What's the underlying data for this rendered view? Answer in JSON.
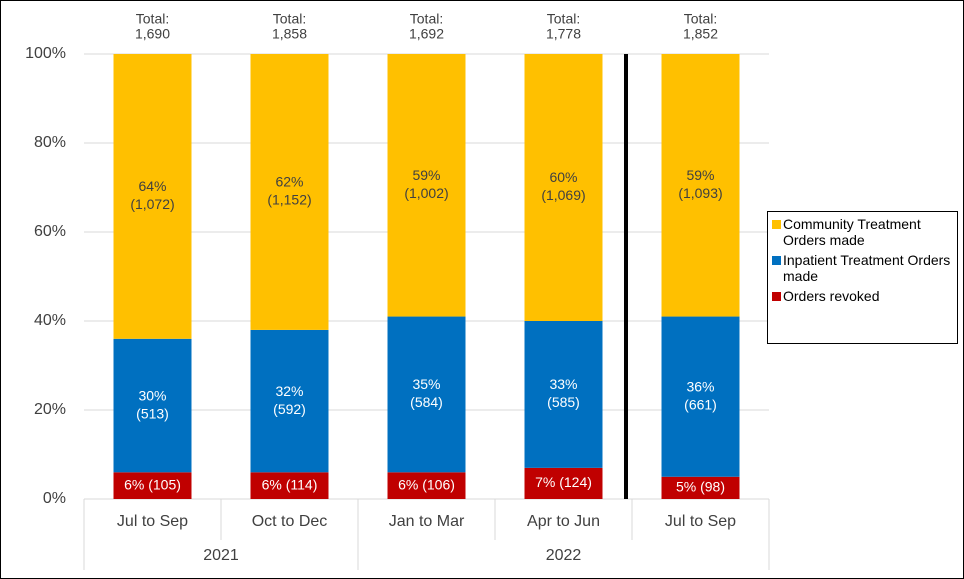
{
  "chart_data": {
    "type": "stacked_bar",
    "categories": [
      "Jul to Sep",
      "Oct to Dec",
      "Jan to Mar",
      "Apr to Jun",
      "Jul to Sep"
    ],
    "groups": [
      {
        "name": "2021",
        "count": 2
      },
      {
        "name": "2022",
        "count": 3
      }
    ],
    "series": [
      {
        "name": "Orders revoked",
        "color": "#c00000",
        "values": [
          6,
          6,
          6,
          7,
          5
        ],
        "value_labels": [
          [
            "6% (105)"
          ],
          [
            "6% (114)"
          ],
          [
            "6% (106)"
          ],
          [
            "7% (124)"
          ],
          [
            "5% (98)"
          ]
        ]
      },
      {
        "name": "Inpatient Treatment Orders made",
        "color": "#0070c0",
        "values": [
          30,
          32,
          35,
          33,
          36
        ],
        "value_labels": [
          [
            "30%",
            "(513)"
          ],
          [
            "32%",
            "(592)"
          ],
          [
            "35%",
            "(584)"
          ],
          [
            "33%",
            "(585)"
          ],
          [
            "36%",
            "(661)"
          ]
        ]
      },
      {
        "name": "Community Treatment Orders made",
        "color": "#ffc000",
        "values": [
          64,
          62,
          59,
          60,
          59
        ],
        "value_labels": [
          [
            "64%",
            "(1,072)"
          ],
          [
            "62%",
            "(1,152)"
          ],
          [
            "59%",
            "(1,002)"
          ],
          [
            "60%",
            "(1,069)"
          ],
          [
            "59%",
            "(1,093)"
          ]
        ]
      }
    ],
    "totals": [
      [
        "Total:",
        "1,690"
      ],
      [
        "Total:",
        "1,858"
      ],
      [
        "Total:",
        "1,692"
      ],
      [
        "Total:",
        "1,778"
      ],
      [
        "Total:",
        "1,852"
      ]
    ],
    "ylim": [
      0,
      100
    ],
    "yticks": [
      {
        "value": 0,
        "label": "0%"
      },
      {
        "value": 20,
        "label": "20%"
      },
      {
        "value": 40,
        "label": "40%"
      },
      {
        "value": 60,
        "label": "60%"
      },
      {
        "value": 80,
        "label": "80%"
      },
      {
        "value": 100,
        "label": "100%"
      }
    ],
    "grid": true,
    "legend": "right"
  }
}
